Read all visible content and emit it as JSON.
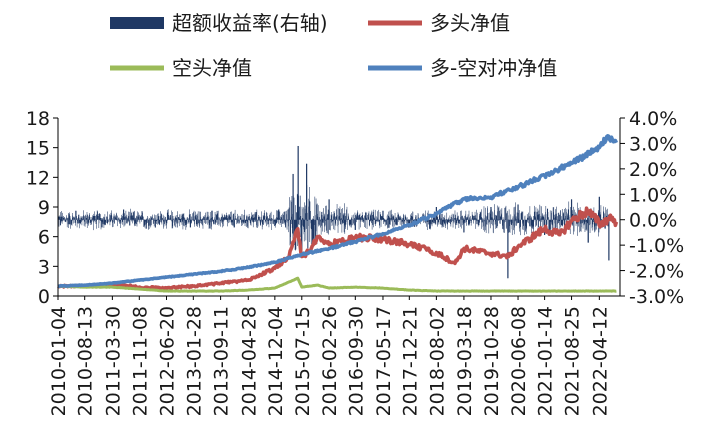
{
  "chart_data": {
    "type": "line",
    "legend_position": "top",
    "grid": false,
    "x_tick_labels": [
      "2010-01-04",
      "2010-08-13",
      "2011-03-30",
      "2011-11-08",
      "2012-06-20",
      "2013-01-28",
      "2013-09-11",
      "2014-04-28",
      "2014-12-04",
      "2015-07-15",
      "2016-02-26",
      "2016-09-30",
      "2017-05-17",
      "2017-12-21",
      "2018-08-02",
      "2019-03-18",
      "2019-10-28",
      "2020-06-08",
      "2021-01-14",
      "2021-08-25",
      "2022-04-12"
    ],
    "y_left": {
      "ticks": [
        "0",
        "3",
        "6",
        "9",
        "12",
        "15",
        "18"
      ],
      "min": 0,
      "max": 18
    },
    "y_right": {
      "ticks": [
        "-3.0%",
        "-2.0%",
        "-1.0%",
        "0.0%",
        "1.0%",
        "2.0%",
        "3.0%",
        "4.0%"
      ],
      "min": -3.0,
      "max": 4.0,
      "unit": "%"
    },
    "series": [
      {
        "name": "超额收益率(右轴)",
        "kind": "bar",
        "axis": "right",
        "color": "#1f3864",
        "points": [
          [
            "2010-01-04",
            0.0
          ],
          [
            "2010-06-01",
            0.35
          ],
          [
            "2011-01-03",
            -0.3
          ],
          [
            "2011-07-01",
            0.4
          ],
          [
            "2012-01-04",
            -0.35
          ],
          [
            "2012-07-02",
            0.3
          ],
          [
            "2013-01-04",
            -0.3
          ],
          [
            "2013-07-01",
            0.35
          ],
          [
            "2014-01-02",
            -0.3
          ],
          [
            "2014-07-01",
            0.3
          ],
          [
            "2015-01-05",
            0.4
          ],
          [
            "2015-05-04",
            1.8
          ],
          [
            "2015-06-15",
            2.9
          ],
          [
            "2015-07-15",
            -1.2
          ],
          [
            "2015-08-24",
            2.2
          ],
          [
            "2015-10-15",
            -0.8
          ],
          [
            "2016-02-26",
            0.8
          ],
          [
            "2016-09-30",
            -0.4
          ],
          [
            "2017-05-17",
            0.35
          ],
          [
            "2017-12-21",
            -0.3
          ],
          [
            "2018-08-02",
            0.5
          ],
          [
            "2019-03-18",
            -0.5
          ],
          [
            "2019-10-28",
            0.5
          ],
          [
            "2020-03-16",
            -2.3
          ],
          [
            "2020-06-08",
            0.6
          ],
          [
            "2021-01-14",
            -0.6
          ],
          [
            "2021-08-25",
            0.8
          ],
          [
            "2022-01-10",
            -0.9
          ],
          [
            "2022-04-12",
            0.9
          ],
          [
            "2022-06-30",
            -1.6
          ]
        ]
      },
      {
        "name": "多头净值",
        "kind": "line",
        "axis": "left",
        "color": "#c0504d",
        "points": [
          [
            "2010-01-04",
            1.0
          ],
          [
            "2010-08-13",
            1.0
          ],
          [
            "2011-03-30",
            1.2
          ],
          [
            "2011-11-08",
            0.9
          ],
          [
            "2012-06-20",
            0.8
          ],
          [
            "2013-01-28",
            1.0
          ],
          [
            "2013-09-11",
            1.3
          ],
          [
            "2014-04-28",
            1.6
          ],
          [
            "2014-12-04",
            2.8
          ],
          [
            "2015-04-01",
            4.0
          ],
          [
            "2015-06-12",
            6.8
          ],
          [
            "2015-07-15",
            4.0
          ],
          [
            "2015-09-15",
            4.5
          ],
          [
            "2015-11-20",
            6.0
          ],
          [
            "2016-02-26",
            5.2
          ],
          [
            "2016-09-30",
            5.9
          ],
          [
            "2017-05-17",
            5.8
          ],
          [
            "2017-12-21",
            5.2
          ],
          [
            "2018-08-02",
            4.4
          ],
          [
            "2019-01-03",
            3.3
          ],
          [
            "2019-03-18",
            4.8
          ],
          [
            "2019-10-28",
            4.3
          ],
          [
            "2020-03-23",
            4.0
          ],
          [
            "2020-06-08",
            5.0
          ],
          [
            "2021-01-14",
            6.8
          ],
          [
            "2021-05-20",
            6.2
          ],
          [
            "2021-08-25",
            7.6
          ],
          [
            "2022-01-04",
            8.6
          ],
          [
            "2022-04-26",
            7.2
          ],
          [
            "2022-07-05",
            8.0
          ],
          [
            "2022-08-31",
            7.5
          ]
        ]
      },
      {
        "name": "空头净值",
        "kind": "line",
        "axis": "left",
        "color": "#9bbb59",
        "points": [
          [
            "2010-01-04",
            1.0
          ],
          [
            "2010-08-13",
            0.9
          ],
          [
            "2011-03-30",
            0.9
          ],
          [
            "2011-11-08",
            0.7
          ],
          [
            "2012-06-20",
            0.5
          ],
          [
            "2013-01-28",
            0.5
          ],
          [
            "2013-09-11",
            0.5
          ],
          [
            "2014-04-28",
            0.6
          ],
          [
            "2014-12-04",
            0.8
          ],
          [
            "2015-06-12",
            1.8
          ],
          [
            "2015-07-15",
            0.9
          ],
          [
            "2015-11-20",
            1.1
          ],
          [
            "2016-02-26",
            0.8
          ],
          [
            "2016-09-30",
            0.9
          ],
          [
            "2017-05-17",
            0.8
          ],
          [
            "2017-12-21",
            0.6
          ],
          [
            "2018-08-02",
            0.5
          ],
          [
            "2019-03-18",
            0.5
          ],
          [
            "2019-10-28",
            0.5
          ],
          [
            "2020-06-08",
            0.5
          ],
          [
            "2021-01-14",
            0.5
          ],
          [
            "2021-08-25",
            0.5
          ],
          [
            "2022-04-12",
            0.5
          ],
          [
            "2022-08-31",
            0.5
          ]
        ]
      },
      {
        "name": "多-空对冲净值",
        "kind": "line",
        "axis": "left",
        "color": "#4f81bd",
        "points": [
          [
            "2010-01-04",
            1.0
          ],
          [
            "2010-08-13",
            1.1
          ],
          [
            "2011-03-30",
            1.3
          ],
          [
            "2011-11-08",
            1.6
          ],
          [
            "2012-06-20",
            1.9
          ],
          [
            "2013-01-28",
            2.2
          ],
          [
            "2013-09-11",
            2.5
          ],
          [
            "2014-04-28",
            2.9
          ],
          [
            "2014-12-04",
            3.4
          ],
          [
            "2015-07-15",
            4.2
          ],
          [
            "2016-02-26",
            4.8
          ],
          [
            "2016-09-30",
            5.5
          ],
          [
            "2017-05-17",
            6.3
          ],
          [
            "2017-12-21",
            7.2
          ],
          [
            "2018-08-02",
            8.3
          ],
          [
            "2019-03-18",
            9.8
          ],
          [
            "2019-10-28",
            10.0
          ],
          [
            "2020-06-08",
            11.0
          ],
          [
            "2021-01-14",
            12.2
          ],
          [
            "2021-08-25",
            13.4
          ],
          [
            "2022-04-12",
            15.0
          ],
          [
            "2022-06-20",
            16.2
          ],
          [
            "2022-08-31",
            15.5
          ]
        ]
      }
    ]
  }
}
